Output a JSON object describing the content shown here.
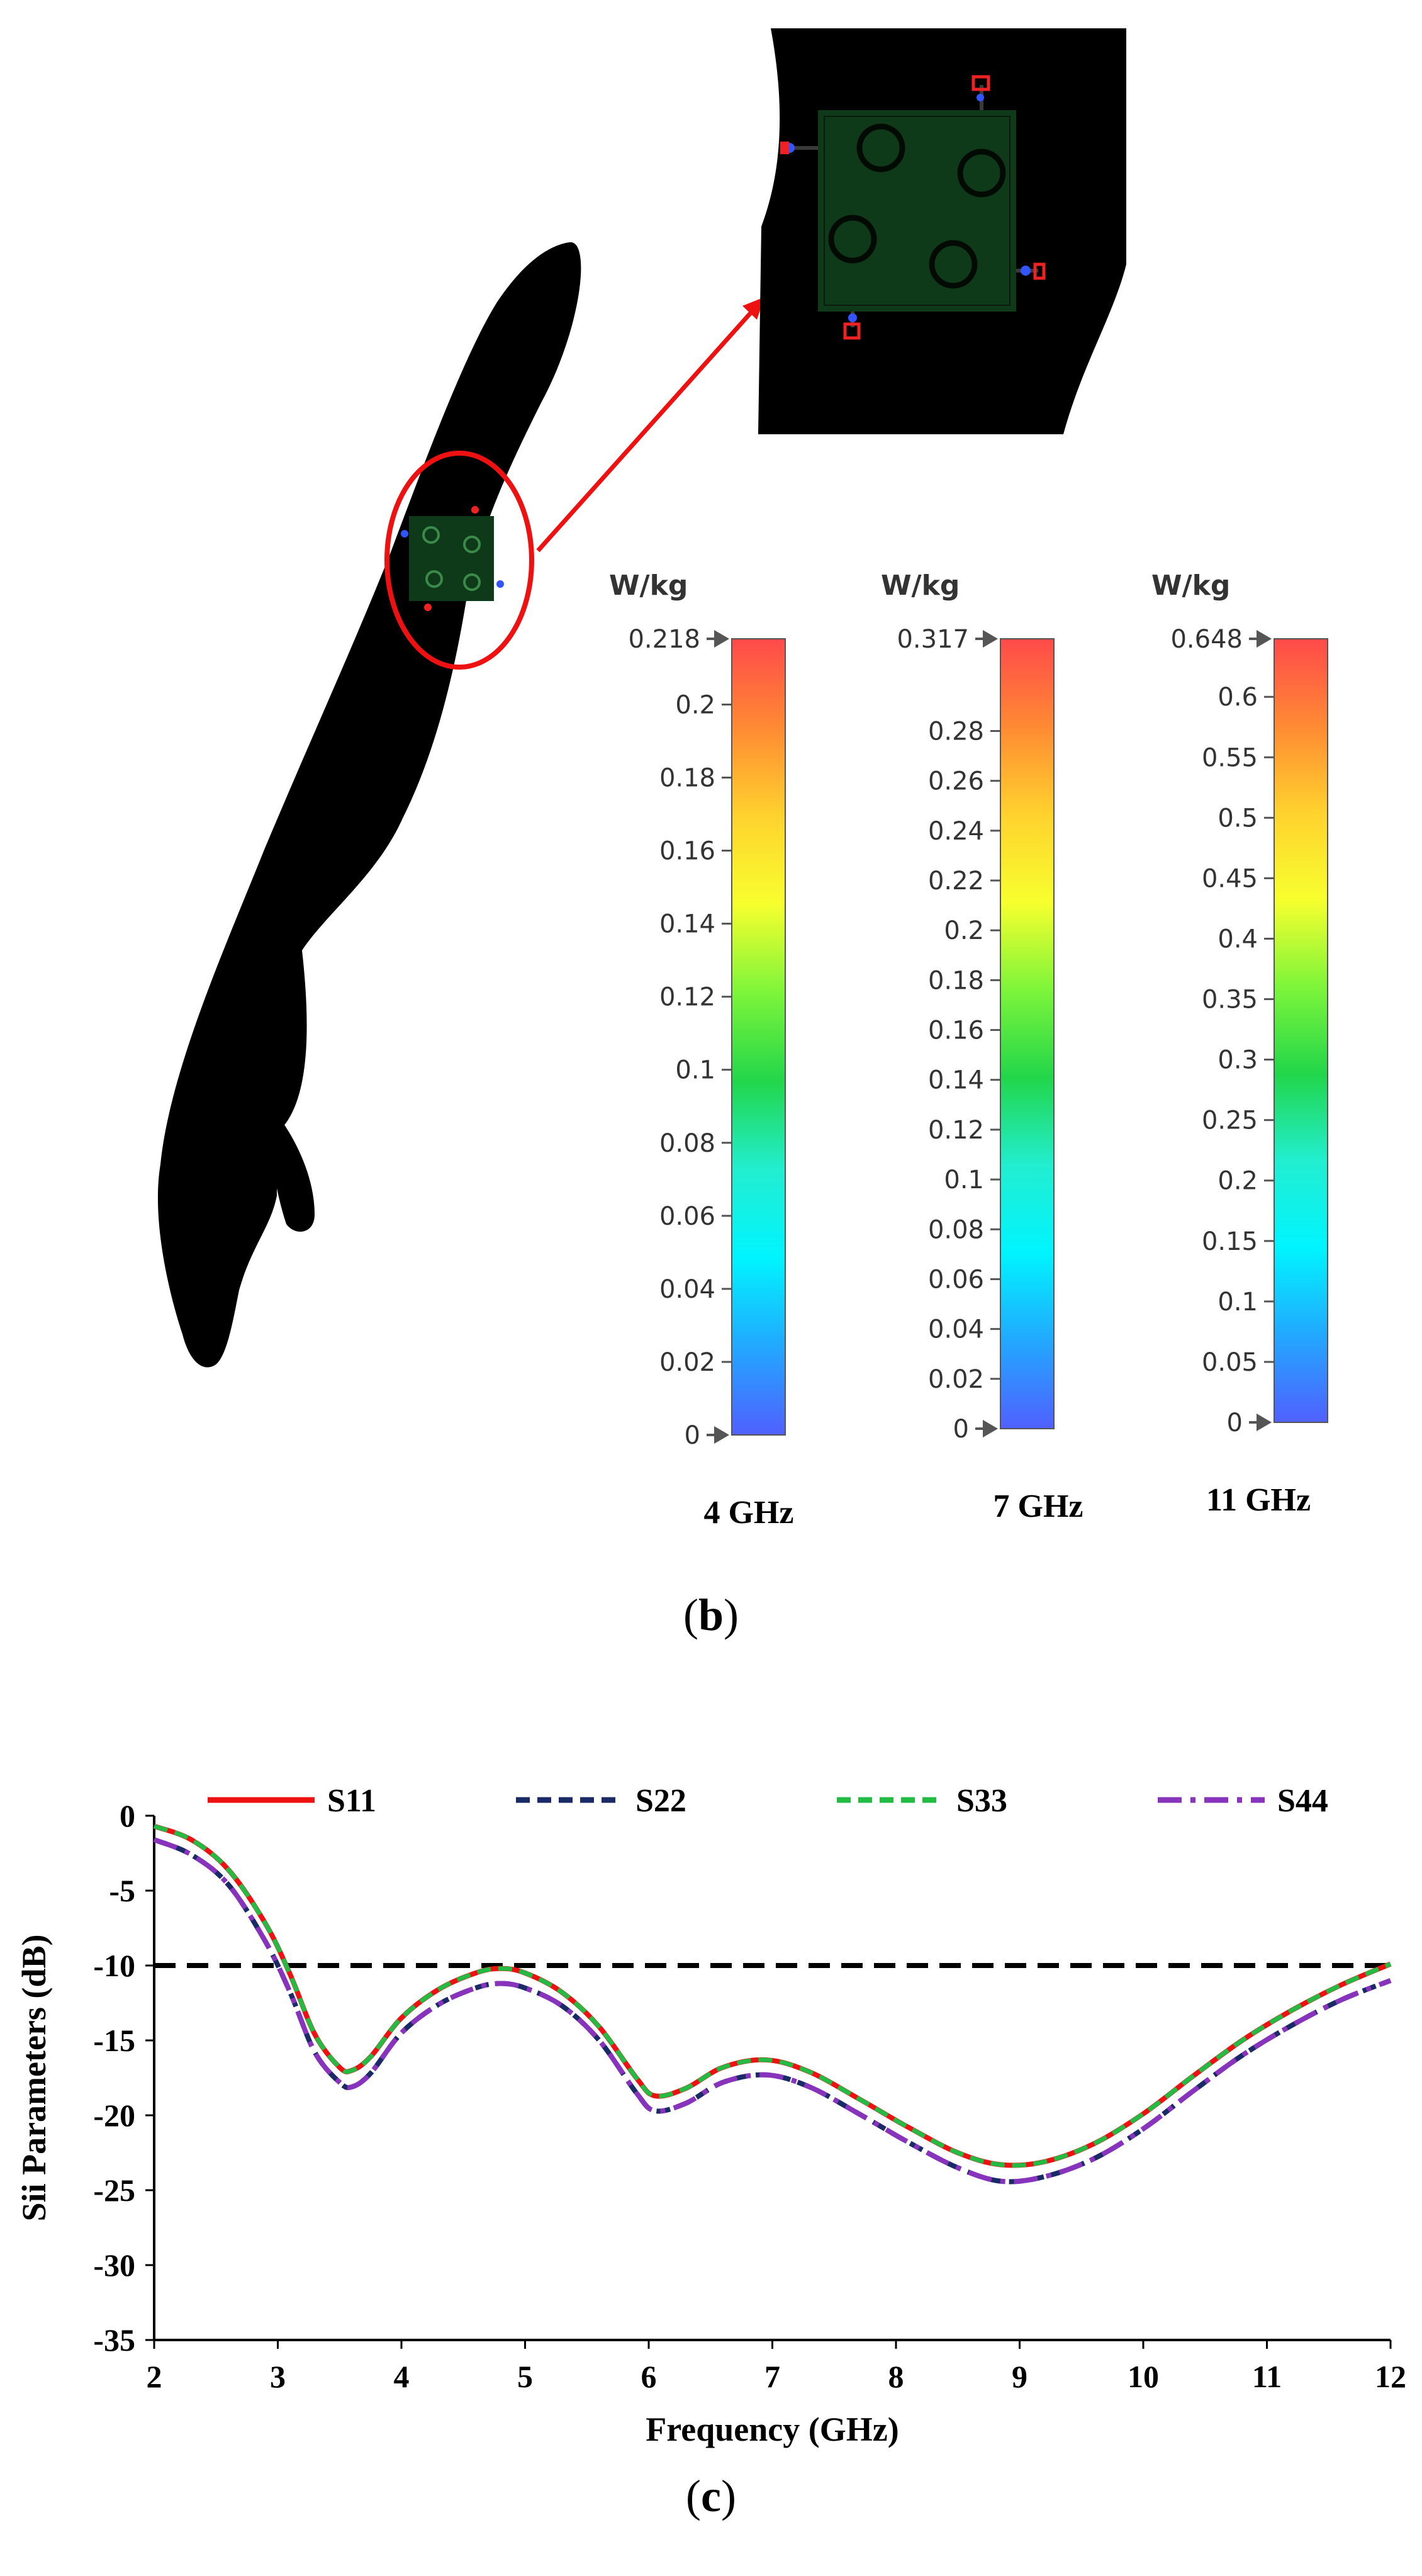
{
  "panel_b": {
    "label_open": "(",
    "label_letter": "b",
    "label_close": ")",
    "colorbars": [
      {
        "unit": "W/kg",
        "max_label": "0.218",
        "min_label": "0",
        "min": 0,
        "max": 0.218,
        "ticks": [
          "0.2",
          "0.18",
          "0.16",
          "0.14",
          "0.12",
          "0.1",
          "0.08",
          "0.06",
          "0.04",
          "0.02"
        ],
        "frequency": "4 GHz"
      },
      {
        "unit": "W/kg",
        "max_label": "0.317",
        "min_label": "0",
        "min": 0,
        "max": 0.317,
        "ticks": [
          "0.28",
          "0.26",
          "0.24",
          "0.22",
          "0.2",
          "0.18",
          "0.16",
          "0.14",
          "0.12",
          "0.1",
          "0.08",
          "0.06",
          "0.04",
          "0.02"
        ],
        "frequency": "7 GHz"
      },
      {
        "unit": "W/kg",
        "max_label": "0.648",
        "min_label": "0",
        "min": 0,
        "max": 0.648,
        "ticks": [
          "0.6",
          "0.55",
          "0.5",
          "0.45",
          "0.4",
          "0.35",
          "0.3",
          "0.25",
          "0.2",
          "0.15",
          "0.1",
          "0.05"
        ],
        "frequency": "11 GHz"
      }
    ],
    "colors": {
      "arm": "#000000",
      "board": "#0f3a1a",
      "highlight": "#ee1111",
      "scale": [
        "#ff4a4a",
        "#ff8a33",
        "#ffd22e",
        "#f7ff2e",
        "#7df53a",
        "#22d64a",
        "#22eed0",
        "#00f4ff",
        "#22a8ff",
        "#5060ff"
      ]
    }
  },
  "panel_c": {
    "label_open": "(",
    "label_letter": "c",
    "label_close": ")"
  },
  "chart_data": {
    "type": "line",
    "title": "",
    "xlabel": "Frequency (GHz)",
    "ylabel": "Sii Parameters (dB)",
    "xlim": [
      2,
      12
    ],
    "ylim": [
      -35,
      0
    ],
    "xticks": [
      "2",
      "3",
      "4",
      "5",
      "6",
      "7",
      "8",
      "9",
      "10",
      "11",
      "12"
    ],
    "yticks": [
      "0",
      "-5",
      "-10",
      "-15",
      "-20",
      "-25",
      "-30",
      "-35"
    ],
    "grid": false,
    "legend_position": "top",
    "reference_line": {
      "y": -10,
      "style": "dashed",
      "color": "#000000"
    },
    "x": [
      2,
      2.3,
      2.6,
      2.9,
      3.1,
      3.3,
      3.5,
      3.6,
      3.75,
      4.0,
      4.3,
      4.6,
      4.8,
      5.0,
      5.3,
      5.6,
      5.9,
      6.05,
      6.3,
      6.6,
      6.95,
      7.3,
      7.7,
      8.1,
      8.5,
      8.85,
      9.2,
      9.6,
      10.0,
      10.4,
      10.8,
      11.2,
      11.6,
      12.0
    ],
    "series": [
      {
        "name": "S11",
        "color": "#ee1111",
        "dash": "solid",
        "values": [
          -0.7,
          -1.6,
          -3.6,
          -7.2,
          -10.6,
          -14.6,
          -16.8,
          -17.0,
          -16.1,
          -13.5,
          -11.6,
          -10.5,
          -10.2,
          -10.5,
          -11.8,
          -14.1,
          -17.5,
          -18.7,
          -18.2,
          -16.8,
          -16.3,
          -17.1,
          -18.9,
          -20.8,
          -22.5,
          -23.3,
          -23.1,
          -21.9,
          -19.9,
          -17.4,
          -15.0,
          -13.0,
          -11.3,
          -9.9
        ]
      },
      {
        "name": "S22",
        "color": "#1a2a66",
        "dash": "dashed",
        "values": [
          -1.6,
          -2.6,
          -4.6,
          -8.4,
          -11.8,
          -15.8,
          -17.8,
          -18.1,
          -17.2,
          -14.5,
          -12.6,
          -11.5,
          -11.2,
          -11.5,
          -12.7,
          -15.0,
          -18.5,
          -19.7,
          -19.2,
          -17.8,
          -17.3,
          -18.1,
          -19.9,
          -21.8,
          -23.5,
          -24.4,
          -24.1,
          -22.9,
          -20.9,
          -18.4,
          -16.0,
          -14.0,
          -12.3,
          -11.0
        ]
      },
      {
        "name": "S33",
        "color": "#22bb44",
        "dash": "dashed",
        "values": [
          -0.7,
          -1.6,
          -3.6,
          -7.2,
          -10.6,
          -14.6,
          -16.8,
          -17.0,
          -16.1,
          -13.5,
          -11.6,
          -10.5,
          -10.2,
          -10.5,
          -11.8,
          -14.1,
          -17.5,
          -18.7,
          -18.2,
          -16.8,
          -16.3,
          -17.1,
          -18.9,
          -20.8,
          -22.5,
          -23.3,
          -23.1,
          -21.9,
          -19.9,
          -17.4,
          -15.0,
          -13.0,
          -11.3,
          -9.9
        ]
      },
      {
        "name": "S44",
        "color": "#8833bb",
        "dash": "dashdot",
        "values": [
          -1.6,
          -2.6,
          -4.6,
          -8.4,
          -11.8,
          -15.8,
          -17.8,
          -18.1,
          -17.2,
          -14.5,
          -12.6,
          -11.5,
          -11.2,
          -11.5,
          -12.7,
          -15.0,
          -18.5,
          -19.7,
          -19.2,
          -17.8,
          -17.3,
          -18.1,
          -19.9,
          -21.8,
          -23.5,
          -24.4,
          -24.1,
          -22.9,
          -20.9,
          -18.4,
          -16.0,
          -14.0,
          -12.3,
          -11.0
        ]
      }
    ]
  }
}
